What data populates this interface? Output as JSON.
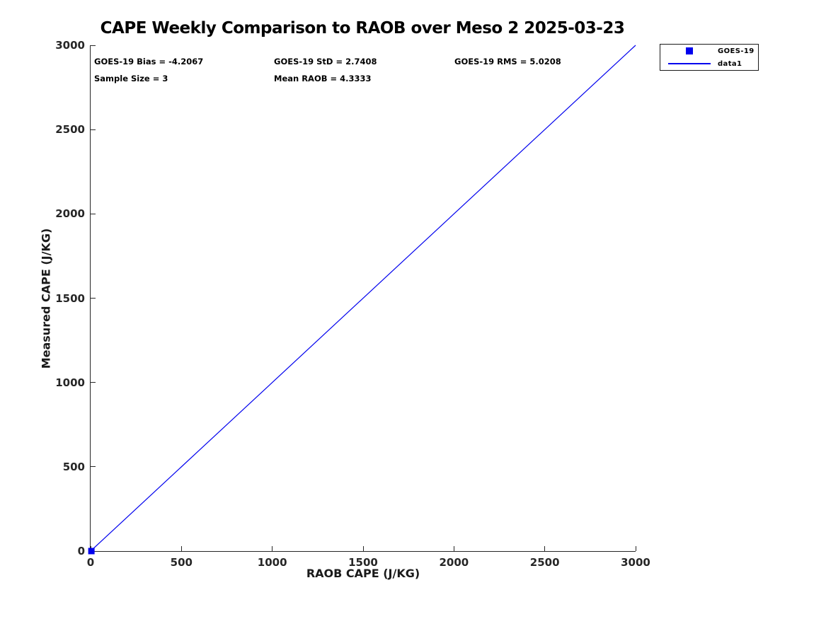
{
  "title": "CAPE Weekly Comparison to RAOB over Meso 2 2025-03-23",
  "stats": {
    "bias": "GOES-19 Bias = -4.2067",
    "std": "GOES-19 StD = 2.7408",
    "rms": "GOES-19 RMS = 5.0208",
    "sample_size": "Sample Size = 3",
    "mean_raob": "Mean RAOB = 4.3333"
  },
  "legend": {
    "items": [
      {
        "label": "GOES-19",
        "swatch": "square-marker",
        "color": "#0000ee"
      },
      {
        "label": "data1",
        "swatch": "line",
        "color": "#0000ee"
      }
    ]
  },
  "colors": {
    "accent_blue": "#0000ee",
    "axis": "#262626",
    "background": "#ffffff",
    "text": "#000000"
  },
  "chart_data": {
    "type": "scatter",
    "title": "CAPE Weekly Comparison to RAOB over Meso 2 2025-03-23",
    "xlabel": "RAOB CAPE (J/KG)",
    "ylabel": "Measured CAPE (J/KG)",
    "xlim": [
      0,
      3000
    ],
    "ylim": [
      0,
      3000
    ],
    "x_ticks": [
      0,
      500,
      1000,
      1500,
      2000,
      2500,
      3000
    ],
    "y_ticks": [
      0,
      500,
      1000,
      1500,
      2000,
      2500,
      3000
    ],
    "grid": false,
    "legend_position": "outside-top-right",
    "series": [
      {
        "name": "GOES-19",
        "type": "scatter",
        "marker": "square",
        "color": "#0000ee",
        "points": [
          [
            4.3333,
            0.1267
          ]
        ]
      },
      {
        "name": "data1",
        "type": "line",
        "color": "#0000ee",
        "points": [
          [
            0,
            0
          ],
          [
            3000,
            3000
          ]
        ]
      }
    ],
    "annotations": [
      "GOES-19 Bias = -4.2067",
      "GOES-19 StD = 2.7408",
      "GOES-19 RMS = 5.0208",
      "Sample Size = 3",
      "Mean RAOB = 4.3333"
    ]
  }
}
